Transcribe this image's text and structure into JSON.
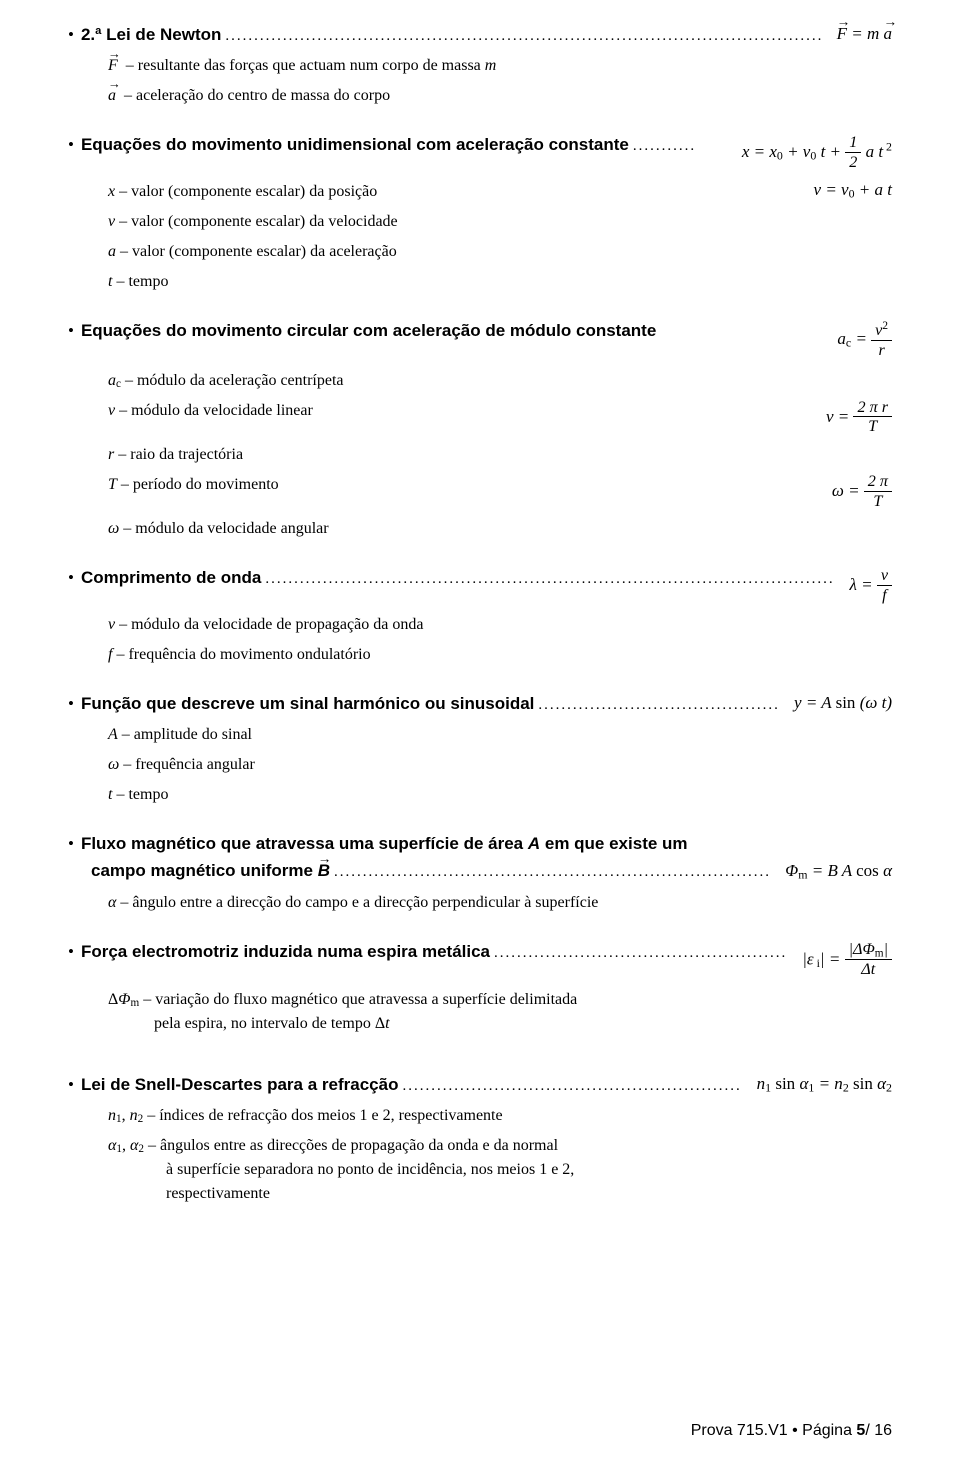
{
  "s1": {
    "title": "2.ª Lei de Newton",
    "formula_html": "<span class='vec'>F</span> = m <span class='vec'>a</span>",
    "d1_html": "<span class='vec sym'>F</span> &nbsp;– resultante das forças que actuam num corpo de massa <span class='sym'>m</span>",
    "d2_html": "<span class='vec sym'>a</span> &nbsp;– aceleração do centro de massa do corpo"
  },
  "s2": {
    "title": "Equações do movimento unidimensional com aceleração constante",
    "formula_html": "x = x<sub>0</sub> + v<sub>0</sub> t + <span class='frac'><span class='num'>1</span><span class='den'>2</span></span> a t<sup>&nbsp;2</sup>",
    "d1_html": "<span class='sym'>x</span> – valor (componente escalar) da posição",
    "d1_rhs_html": "v = v<sub>0</sub> + a t",
    "d2_html": "<span class='sym'>v</span> – valor (componente escalar) da velocidade",
    "d3_html": "<span class='sym'>a</span> – valor (componente escalar) da aceleração",
    "d4_html": "<span class='sym'>t</span> – tempo"
  },
  "s3": {
    "title": "Equações do movimento circular com aceleração de módulo constante",
    "formula_html": "a<sub>c</sub> = <span class='frac'><span class='num'>v<sup>2</sup></span><span class='den'>r</span></span>",
    "d1_html": "<span class='sym'>a</span><sub>c</sub> – módulo da aceleração centrípeta",
    "d2_html": "<span class='sym'>v</span> – módulo da velocidade linear",
    "d2_rhs_html": "v = <span class='frac'><span class='num'>2 π r</span><span class='den'>T</span></span>",
    "d3_html": "<span class='sym'>r</span> – raio da trajectória",
    "d4_html": "<span class='sym'>T</span> – período do movimento",
    "d4_rhs_html": "ω = <span class='frac'><span class='num'>2 π</span><span class='den'>T</span></span>",
    "d5_html": "<span class='sym'>ω</span> – módulo da velocidade angular"
  },
  "s4": {
    "title": "Comprimento de onda",
    "formula_html": "λ = <span class='frac'><span class='num'>v</span><span class='den'>f</span></span>",
    "d1_html": "<span class='sym'>v</span> – módulo da velocidade de propagação da onda",
    "d2_html": "<span class='sym'>f</span> – frequência do movimento ondulatório"
  },
  "s5": {
    "title": "Função que descreve um sinal harmónico ou sinusoidal",
    "formula_html": "y = A <span style='font-style:normal'>sin</span> (ω t)",
    "d1_html": "<span class='sym'>A</span> – amplitude do sinal",
    "d2_html": "<span class='sym'>ω</span> – frequência angular",
    "d3_html": "<span class='sym'>t</span> – tempo"
  },
  "s6": {
    "title1_html": "Fluxo magnético que atravessa uma superfície de área <span class='title-it'>A</span> em que existe um",
    "title2_html": "campo magnético uniforme <span class='vec title-it'>B</span>",
    "formula_html": "Φ<sub>m</sub> = B A <span style='font-style:normal'>cos</span> α",
    "d1_html": "<span class='sym'>α</span> – ângulo entre a direcção do campo e a direcção perpendicular à superfície"
  },
  "s7": {
    "title": "Força electromotriz induzida numa espira metálica",
    "formula_html": "|ε<sub>&nbsp;i</sub>| = <span class='frac'><span class='num'>|ΔΦ<sub>m</sub>|</span><span class='den'>Δt</span></span>",
    "d1_html": "Δ<span class='sym'>Φ</span><sub>m</sub> – variação do fluxo magnético que atravessa a superfície delimitada<br><span style='display:inline-block;width:46px'></span>pela espira, no intervalo de tempo Δ<span class='sym'>t</span>"
  },
  "s8": {
    "title": "Lei de Snell-Descartes para a refracção",
    "formula_html": "n<sub>1</sub> <span style='font-style:normal'>sin</span> α<sub>1</sub> = n<sub>2</sub> <span style='font-style:normal'>sin</span> α<sub>2</sub>",
    "d1_html": "<span class='sym'>n</span><sub>1</sub>, <span class='sym'>n</span><sub>2</sub> – índices de refracção dos meios 1 e 2, respectivamente",
    "d2_html": "<span class='sym'>α</span><sub>1</sub>, <span class='sym'>α</span><sub>2</sub> – ângulos entre as direcções de propagação da onda e da normal<br><span style='display:inline-block;width:58px'></span>à superfície separadora no ponto de incidência, nos meios 1 e 2,<br><span style='display:inline-block;width:58px'></span>respectivamente"
  },
  "footer": {
    "prova": "Prova 715.V1",
    "sep": " • ",
    "page_label": "Página ",
    "page_num": "5",
    "page_total": "/ 16"
  }
}
